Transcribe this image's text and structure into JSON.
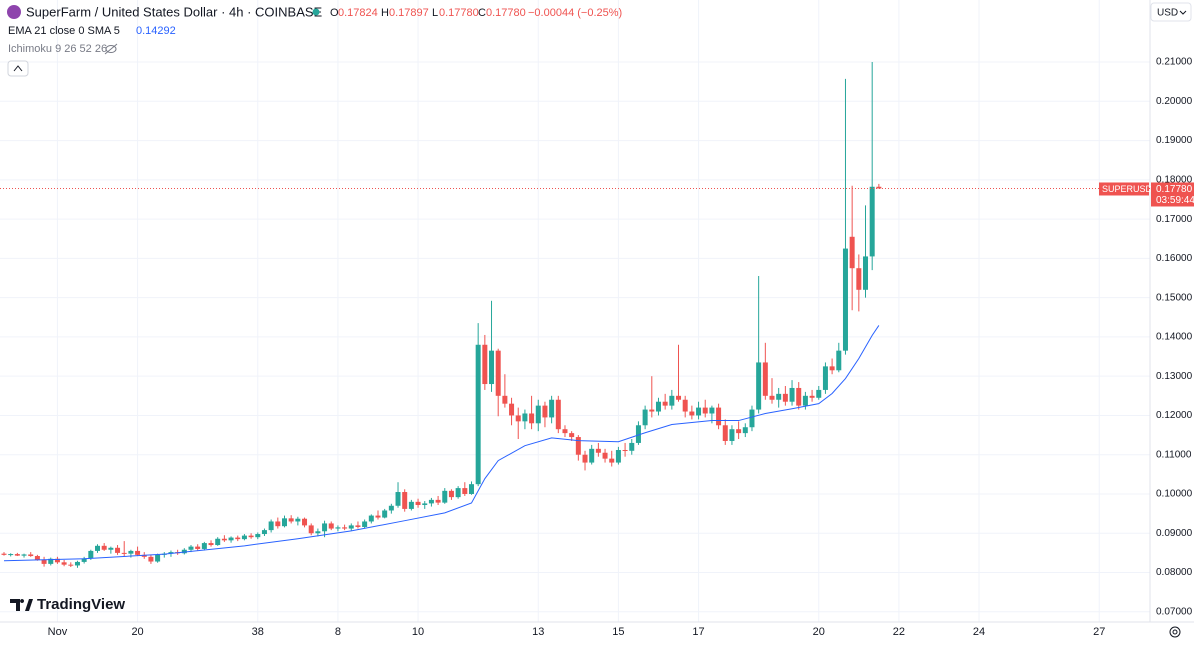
{
  "chart_data": {
    "type": "candlestick",
    "title": "SuperFarm / United States Dollar · 4h · COINBASE",
    "ohlc_letters": [
      "O",
      "H",
      "L",
      "C"
    ],
    "last_bar_labels": [
      "0.17824",
      "0.17897",
      "0.17780",
      "0.17780"
    ],
    "change": "−0.00044 (−0.25%)",
    "indicator_ema": "EMA 21 close 0 SMA 5",
    "ema_label": "0.14292",
    "indicator_ichimoku": "Ichimoku 9 26 52 26",
    "currency": "USD",
    "symbol_tag": "SUPERUSD",
    "countdown": "03:59:44",
    "brand": "TradingView",
    "up_color": "#26a69a",
    "down_color": "#ef5350",
    "ema_color": "#2962ff",
    "grid": true,
    "xlim": [
      -0.6,
      171.6
    ],
    "ylim": [
      0.0674,
      0.2258
    ],
    "xticks": [
      {
        "value": 8,
        "label": "Nov"
      },
      20,
      38,
      {
        "value": 50,
        "label": "8"
      },
      {
        "value": 62,
        "label": "10"
      },
      {
        "value": 80,
        "label": "13"
      },
      {
        "value": 92,
        "label": "15"
      },
      {
        "value": 104,
        "label": "17"
      },
      {
        "value": 122,
        "label": "20"
      },
      {
        "value": 134,
        "label": "22"
      },
      {
        "value": 146,
        "label": "24"
      },
      {
        "value": 164,
        "label": "27"
      }
    ],
    "xtick_labels_note_free": null,
    "yticks": [
      {
        "value": 0.07,
        "label": "0.07000"
      },
      {
        "value": 0.08,
        "label": "0.08000"
      },
      {
        "value": 0.09,
        "label": "0.09000"
      },
      {
        "value": 0.1,
        "label": "0.10000"
      },
      {
        "value": 0.11,
        "label": "0.11000"
      },
      {
        "value": 0.12,
        "label": "0.12000"
      },
      {
        "value": 0.13,
        "label": "0.13000"
      },
      {
        "value": 0.14,
        "label": "0.14000"
      },
      {
        "value": 0.15,
        "label": "0.15000"
      },
      {
        "value": 0.16,
        "label": "0.16000"
      },
      {
        "value": 0.17,
        "label": "0.17000"
      },
      {
        "value": 0.18,
        "label": "0.18000"
      },
      {
        "value": 0.19,
        "label": "0.19000"
      },
      {
        "value": 0.2,
        "label": "0.20000"
      },
      {
        "value": 0.21,
        "label": "0.21000"
      }
    ],
    "candles": [
      [
        0.0848,
        0.0852,
        0.0843,
        0.0845
      ],
      [
        0.0845,
        0.0849,
        0.0841,
        0.0847
      ],
      [
        0.0847,
        0.085,
        0.0842,
        0.0843
      ],
      [
        0.0843,
        0.0848,
        0.0838,
        0.0846
      ],
      [
        0.0846,
        0.0852,
        0.084,
        0.0842
      ],
      [
        0.0842,
        0.0845,
        0.083,
        0.0833
      ],
      [
        0.0833,
        0.084,
        0.0815,
        0.0822
      ],
      [
        0.0822,
        0.0838,
        0.0818,
        0.0835
      ],
      [
        0.0835,
        0.084,
        0.0822,
        0.0826
      ],
      [
        0.0826,
        0.0832,
        0.0816,
        0.082
      ],
      [
        0.082,
        0.0826,
        0.0814,
        0.0818
      ],
      [
        0.0818,
        0.083,
        0.0812,
        0.0827
      ],
      [
        0.0827,
        0.084,
        0.0823,
        0.0836
      ],
      [
        0.0836,
        0.0858,
        0.0832,
        0.0855
      ],
      [
        0.0855,
        0.0872,
        0.085,
        0.0868
      ],
      [
        0.0868,
        0.0875,
        0.0855,
        0.0858
      ],
      [
        0.0858,
        0.0866,
        0.0848,
        0.0863
      ],
      [
        0.0863,
        0.087,
        0.0845,
        0.085
      ],
      [
        0.085,
        0.088,
        0.084,
        0.0848
      ],
      [
        0.0848,
        0.0858,
        0.0838,
        0.0855
      ],
      [
        0.0855,
        0.0866,
        0.0842,
        0.0845
      ],
      [
        0.0845,
        0.0852,
        0.0835,
        0.084
      ],
      [
        0.084,
        0.0846,
        0.0822,
        0.0828
      ],
      [
        0.0828,
        0.0848,
        0.0825,
        0.0845
      ],
      [
        0.0845,
        0.0852,
        0.0838,
        0.0848
      ],
      [
        0.0848,
        0.0856,
        0.084,
        0.0852
      ],
      [
        0.0852,
        0.0858,
        0.0845,
        0.0849
      ],
      [
        0.0849,
        0.0862,
        0.0846,
        0.0858
      ],
      [
        0.0858,
        0.087,
        0.0852,
        0.0866
      ],
      [
        0.0866,
        0.0872,
        0.0855,
        0.086
      ],
      [
        0.086,
        0.0878,
        0.0856,
        0.0875
      ],
      [
        0.0875,
        0.0882,
        0.0866,
        0.087
      ],
      [
        0.087,
        0.089,
        0.0868,
        0.0886
      ],
      [
        0.0886,
        0.0895,
        0.0878,
        0.0882
      ],
      [
        0.0882,
        0.0892,
        0.0876,
        0.0889
      ],
      [
        0.0889,
        0.0894,
        0.088,
        0.0885
      ],
      [
        0.0885,
        0.0898,
        0.0882,
        0.0894
      ],
      [
        0.0894,
        0.09,
        0.0886,
        0.089
      ],
      [
        0.089,
        0.0902,
        0.0885,
        0.0898
      ],
      [
        0.0898,
        0.0912,
        0.0893,
        0.0908
      ],
      [
        0.0908,
        0.0935,
        0.0902,
        0.093
      ],
      [
        0.093,
        0.094,
        0.0912,
        0.0918
      ],
      [
        0.0918,
        0.0945,
        0.0915,
        0.0938
      ],
      [
        0.0938,
        0.0946,
        0.0925,
        0.093
      ],
      [
        0.093,
        0.0942,
        0.092,
        0.0937
      ],
      [
        0.0937,
        0.094,
        0.0915,
        0.092
      ],
      [
        0.092,
        0.0925,
        0.0895,
        0.09
      ],
      [
        0.09,
        0.0912,
        0.0892,
        0.0905
      ],
      [
        0.0905,
        0.0932,
        0.089,
        0.0925
      ],
      [
        0.0925,
        0.093,
        0.0908,
        0.0912
      ],
      [
        0.0912,
        0.092,
        0.0905,
        0.0915
      ],
      [
        0.0915,
        0.0922,
        0.0908,
        0.0912
      ],
      [
        0.0912,
        0.0925,
        0.0906,
        0.092
      ],
      [
        0.092,
        0.093,
        0.0912,
        0.0916
      ],
      [
        0.0916,
        0.0935,
        0.0912,
        0.093
      ],
      [
        0.093,
        0.0948,
        0.0925,
        0.0945
      ],
      [
        0.0945,
        0.0958,
        0.0935,
        0.094
      ],
      [
        0.094,
        0.0962,
        0.0938,
        0.0958
      ],
      [
        0.0958,
        0.0975,
        0.095,
        0.097
      ],
      [
        0.097,
        0.103,
        0.0965,
        0.1005
      ],
      [
        0.1005,
        0.1012,
        0.0955,
        0.0962
      ],
      [
        0.0962,
        0.0985,
        0.0958,
        0.098
      ],
      [
        0.098,
        0.0988,
        0.0965,
        0.0972
      ],
      [
        0.0972,
        0.0982,
        0.0962,
        0.0976
      ],
      [
        0.0976,
        0.099,
        0.0968,
        0.0985
      ],
      [
        0.0985,
        0.0995,
        0.0972,
        0.0978
      ],
      [
        0.0978,
        0.1015,
        0.0975,
        0.1008
      ],
      [
        0.1008,
        0.1012,
        0.0985,
        0.0992
      ],
      [
        0.0992,
        0.102,
        0.0988,
        0.1015
      ],
      [
        0.1015,
        0.103,
        0.0995,
        0.1
      ],
      [
        0.1,
        0.1032,
        0.0998,
        0.1025
      ],
      [
        0.1025,
        0.1435,
        0.102,
        0.138
      ],
      [
        0.138,
        0.1405,
        0.1265,
        0.128
      ],
      [
        0.128,
        0.1492,
        0.126,
        0.1365
      ],
      [
        0.1365,
        0.137,
        0.1198,
        0.125
      ],
      [
        0.125,
        0.1305,
        0.122,
        0.123
      ],
      [
        0.123,
        0.1245,
        0.1175,
        0.12
      ],
      [
        0.12,
        0.122,
        0.114,
        0.1185
      ],
      [
        0.1185,
        0.1215,
        0.1165,
        0.1205
      ],
      [
        0.1205,
        0.125,
        0.1165,
        0.118
      ],
      [
        0.118,
        0.124,
        0.116,
        0.1225
      ],
      [
        0.1225,
        0.1235,
        0.117,
        0.1195
      ],
      [
        0.1195,
        0.125,
        0.118,
        0.124
      ],
      [
        0.124,
        0.125,
        0.1155,
        0.1165
      ],
      [
        0.1165,
        0.1175,
        0.1145,
        0.1155
      ],
      [
        0.1155,
        0.116,
        0.1135,
        0.1145
      ],
      [
        0.1145,
        0.115,
        0.1085,
        0.11
      ],
      [
        0.11,
        0.111,
        0.106,
        0.108
      ],
      [
        0.108,
        0.1125,
        0.1075,
        0.1115
      ],
      [
        0.1115,
        0.113,
        0.1095,
        0.1105
      ],
      [
        0.1105,
        0.1115,
        0.108,
        0.109
      ],
      [
        0.109,
        0.111,
        0.107,
        0.108
      ],
      [
        0.108,
        0.112,
        0.1075,
        0.1112
      ],
      [
        0.1112,
        0.113,
        0.1095,
        0.111
      ],
      [
        0.111,
        0.114,
        0.11,
        0.113
      ],
      [
        0.113,
        0.1185,
        0.1125,
        0.1175
      ],
      [
        0.1175,
        0.1225,
        0.1165,
        0.1215
      ],
      [
        0.1215,
        0.13,
        0.1195,
        0.121
      ],
      [
        0.121,
        0.1245,
        0.12,
        0.1235
      ],
      [
        0.1235,
        0.1255,
        0.1215,
        0.1225
      ],
      [
        0.1225,
        0.1265,
        0.1215,
        0.125
      ],
      [
        0.125,
        0.138,
        0.1235,
        0.124
      ],
      [
        0.124,
        0.125,
        0.1195,
        0.121
      ],
      [
        0.121,
        0.1225,
        0.119,
        0.12
      ],
      [
        0.12,
        0.1235,
        0.119,
        0.122
      ],
      [
        0.122,
        0.124,
        0.1195,
        0.1205
      ],
      [
        0.1205,
        0.1225,
        0.118,
        0.122
      ],
      [
        0.122,
        0.123,
        0.1165,
        0.1175
      ],
      [
        0.1175,
        0.119,
        0.1125,
        0.1135
      ],
      [
        0.1135,
        0.1175,
        0.1125,
        0.1165
      ],
      [
        0.1165,
        0.1185,
        0.114,
        0.1155
      ],
      [
        0.1155,
        0.118,
        0.1145,
        0.117
      ],
      [
        0.117,
        0.1225,
        0.116,
        0.1215
      ],
      [
        0.1215,
        0.1555,
        0.1205,
        0.1335
      ],
      [
        0.1335,
        0.1385,
        0.124,
        0.125
      ],
      [
        0.125,
        0.1295,
        0.123,
        0.124
      ],
      [
        0.124,
        0.127,
        0.122,
        0.1255
      ],
      [
        0.1255,
        0.1275,
        0.1225,
        0.1235
      ],
      [
        0.1235,
        0.129,
        0.1225,
        0.127
      ],
      [
        0.127,
        0.1285,
        0.1215,
        0.1225
      ],
      [
        0.1225,
        0.126,
        0.1215,
        0.125
      ],
      [
        0.125,
        0.1265,
        0.1235,
        0.1245
      ],
      [
        0.1245,
        0.1275,
        0.124,
        0.1265
      ],
      [
        0.1265,
        0.1335,
        0.1255,
        0.1325
      ],
      [
        0.1325,
        0.1345,
        0.1305,
        0.1315
      ],
      [
        0.1315,
        0.1385,
        0.131,
        0.1365
      ],
      [
        0.1365,
        0.2057,
        0.1355,
        0.1625
      ],
      [
        0.1655,
        0.1785,
        0.1468,
        0.1575
      ],
      [
        0.1575,
        0.161,
        0.1465,
        0.152
      ],
      [
        0.152,
        0.1735,
        0.15,
        0.1605
      ],
      [
        0.1605,
        0.21,
        0.157,
        0.17824
      ],
      [
        0.17824,
        0.17897,
        0.1778,
        0.1778
      ]
    ],
    "ema": {
      "x": [
        0,
        12,
        24,
        36,
        44,
        52,
        60,
        66,
        70,
        72,
        74,
        78,
        82,
        86,
        92,
        96,
        100,
        106,
        110,
        114,
        118,
        122,
        124,
        126,
        128,
        130,
        131
      ],
      "values": [
        0.083,
        0.0835,
        0.0847,
        0.0868,
        0.0886,
        0.0906,
        0.0932,
        0.0952,
        0.0977,
        0.1039,
        0.1085,
        0.1123,
        0.1143,
        0.1136,
        0.1133,
        0.1156,
        0.1177,
        0.1187,
        0.1187,
        0.1205,
        0.1217,
        0.123,
        0.1256,
        0.1294,
        0.1345,
        0.1404,
        0.14292
      ]
    }
  }
}
